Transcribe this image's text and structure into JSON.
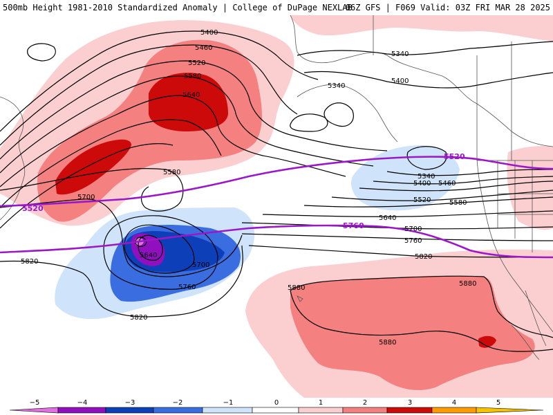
{
  "header": {
    "title_left": "500mb Height 1981-2010 Standardized Anomaly | College of DuPage NEXLAB",
    "title_right": "06Z GFS | F069 Valid: 03Z FRI MAR 28 2025"
  },
  "colors": {
    "neg5": "#e070e0",
    "neg4": "#9010c0",
    "neg3": "#0d3fb8",
    "neg2": "#3a6ee0",
    "neg1": "#cfe4fa",
    "zero": "#ffffff",
    "pos1": "#fbcfd0",
    "pos2": "#f58080",
    "pos3": "#cc0a0a",
    "pos4": "#ff9a00",
    "pos5": "#f5c200",
    "highlight_contour": "#9a18c8",
    "contour": "#000000",
    "coast": "#555555"
  },
  "colorbar": {
    "ticks": [
      "−5",
      "−4",
      "−3",
      "−2",
      "−1",
      "0",
      "1",
      "2",
      "3",
      "4",
      "5"
    ]
  },
  "contours": {
    "l5400a": "5400",
    "l5460a": "5460",
    "l5520a": "5520",
    "l5580a": "5580",
    "l5640a": "5640",
    "l5340a": "5340",
    "l5340b": "5340",
    "l5400b": "5400",
    "l5520hl": "5520",
    "l5340c": "5340",
    "l5400c": "5400",
    "l5460c": "5460",
    "l5520c": "5520",
    "l5580c": "5580",
    "l5640c": "5640",
    "l5700c": "5700",
    "l5760c": "5760",
    "l5820c": "5820",
    "l5520hl2": "5520",
    "l5580w": "5580",
    "l5700w": "5700",
    "l5760hl": "5760",
    "l5640w": "5640",
    "l5700w2": "5700",
    "l5760w": "5760",
    "l5820w": "5820",
    "l5820w2": "5820",
    "l5880a": "5880",
    "l5880b": "5880",
    "l5880c": "5880"
  }
}
